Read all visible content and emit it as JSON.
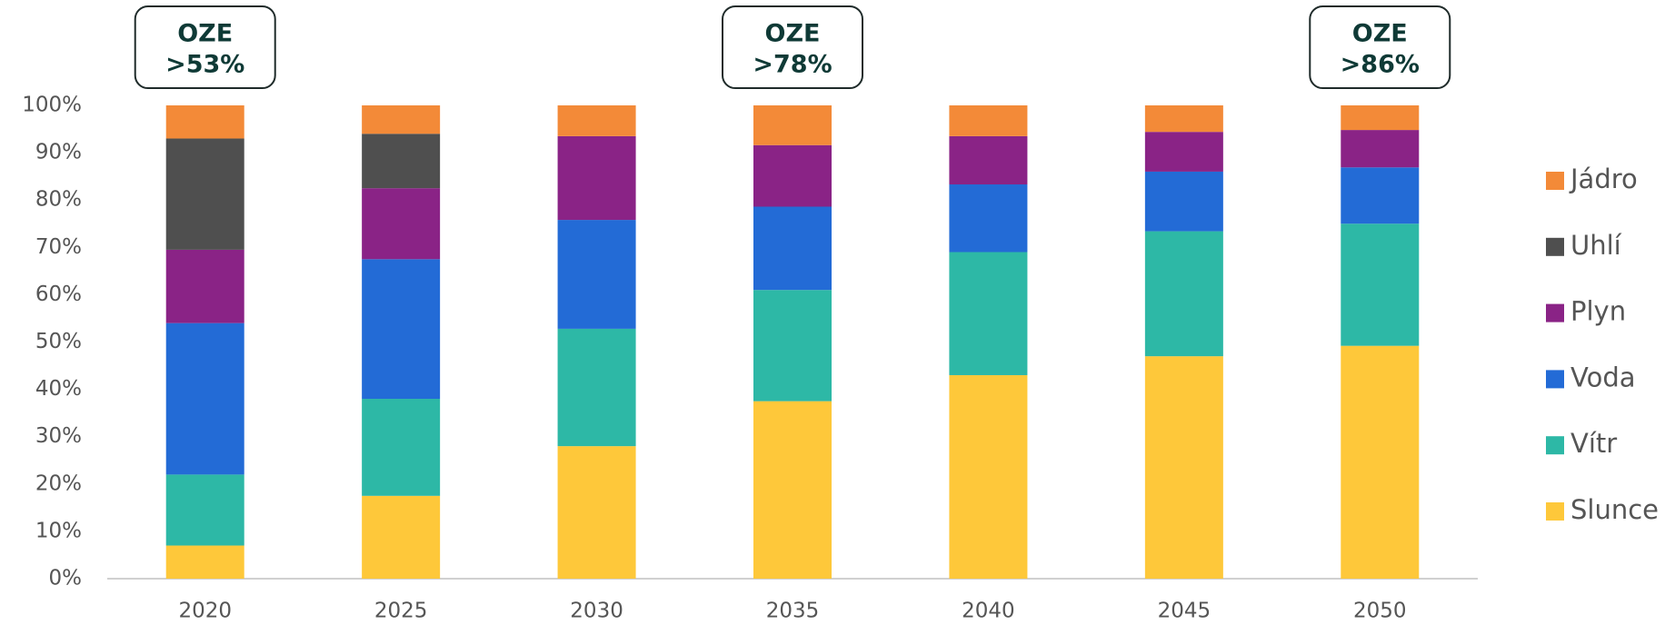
{
  "chart_data": {
    "type": "stacked_bar",
    "categories": [
      "2020",
      "2025",
      "2030",
      "2035",
      "2040",
      "2045",
      "2050"
    ],
    "series": [
      {
        "name": "Slunce",
        "color": "#fec83a",
        "values": [
          7,
          17.5,
          28,
          37.5,
          43,
          47,
          49.2
        ]
      },
      {
        "name": "Vítr",
        "color": "#2db8a6",
        "values": [
          15,
          20.5,
          24.8,
          23.5,
          26,
          26.4,
          25.8
        ]
      },
      {
        "name": "Voda",
        "color": "#236bd6",
        "values": [
          32,
          29.5,
          23,
          17.6,
          14.3,
          12.6,
          11.9
        ]
      },
      {
        "name": "Plyn",
        "color": "#8a2386",
        "values": [
          15.5,
          15,
          17.7,
          13,
          10.2,
          8.4,
          7.9
        ]
      },
      {
        "name": "Uhlí",
        "color": "#4f4f4f",
        "values": [
          23.5,
          11.5,
          0,
          0,
          0,
          0,
          0
        ]
      },
      {
        "name": "Jádro",
        "color": "#f38a38",
        "values": [
          7,
          6,
          6.5,
          8.4,
          6.5,
          5.6,
          5.2
        ]
      }
    ],
    "ylim": [
      0,
      100
    ],
    "yticks": [
      {
        "value": 0,
        "label": "0%"
      },
      {
        "value": 10,
        "label": "10%"
      },
      {
        "value": 20,
        "label": "20%"
      },
      {
        "value": 30,
        "label": "30%"
      },
      {
        "value": 40,
        "label": "40%"
      },
      {
        "value": 50,
        "label": "50%"
      },
      {
        "value": 60,
        "label": "60%"
      },
      {
        "value": 70,
        "label": "70%"
      },
      {
        "value": 80,
        "label": "80%"
      },
      {
        "value": 90,
        "label": "90%"
      },
      {
        "value": 100,
        "label": "100%"
      }
    ],
    "annotations": [
      {
        "lines": [
          "OZE",
          ">53%"
        ]
      },
      {
        "lines": [
          "OZE",
          ">78%"
        ]
      },
      {
        "lines": [
          "OZE",
          ">86%"
        ]
      }
    ],
    "legend": "right"
  }
}
